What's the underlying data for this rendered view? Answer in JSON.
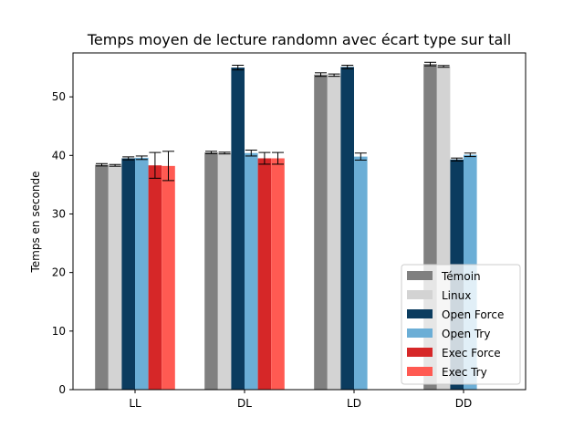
{
  "chart_data": {
    "type": "bar",
    "title": "Temps moyen de lecture randomn avec écart type sur tall",
    "xlabel": "",
    "ylabel": "Temps en seconde",
    "ylim": [
      0,
      57.5
    ],
    "yticks": [
      0,
      10,
      20,
      30,
      40,
      50
    ],
    "categories": [
      "LL",
      "DL",
      "LD",
      "DD"
    ],
    "grid": false,
    "legend_position": "lower-right",
    "series": [
      {
        "name": "Témoin",
        "color": "#808080",
        "values": [
          38.4,
          40.5,
          53.8,
          55.6
        ],
        "errors": [
          0.2,
          0.2,
          0.3,
          0.3
        ]
      },
      {
        "name": "Linux",
        "color": "#d3d3d3",
        "values": [
          38.3,
          40.4,
          53.7,
          55.2
        ],
        "errors": [
          0.15,
          0.15,
          0.2,
          0.15
        ]
      },
      {
        "name": "Open Force",
        "color": "#0b3c5f",
        "values": [
          39.5,
          55.0,
          55.1,
          39.3
        ],
        "errors": [
          0.25,
          0.4,
          0.3,
          0.25
        ]
      },
      {
        "name": "Open Try",
        "color": "#6baed6",
        "values": [
          39.6,
          40.4,
          39.8,
          40.1
        ],
        "errors": [
          0.3,
          0.5,
          0.6,
          0.3
        ]
      },
      {
        "name": "Exec Force",
        "color": "#d62728",
        "values": [
          38.3,
          39.5,
          0,
          0
        ],
        "errors": [
          2.2,
          1.0,
          0,
          0
        ]
      },
      {
        "name": "Exec Try",
        "color": "#ff5a52",
        "values": [
          38.2,
          39.5,
          0,
          0
        ],
        "errors": [
          2.5,
          1.0,
          0,
          0
        ]
      }
    ]
  }
}
